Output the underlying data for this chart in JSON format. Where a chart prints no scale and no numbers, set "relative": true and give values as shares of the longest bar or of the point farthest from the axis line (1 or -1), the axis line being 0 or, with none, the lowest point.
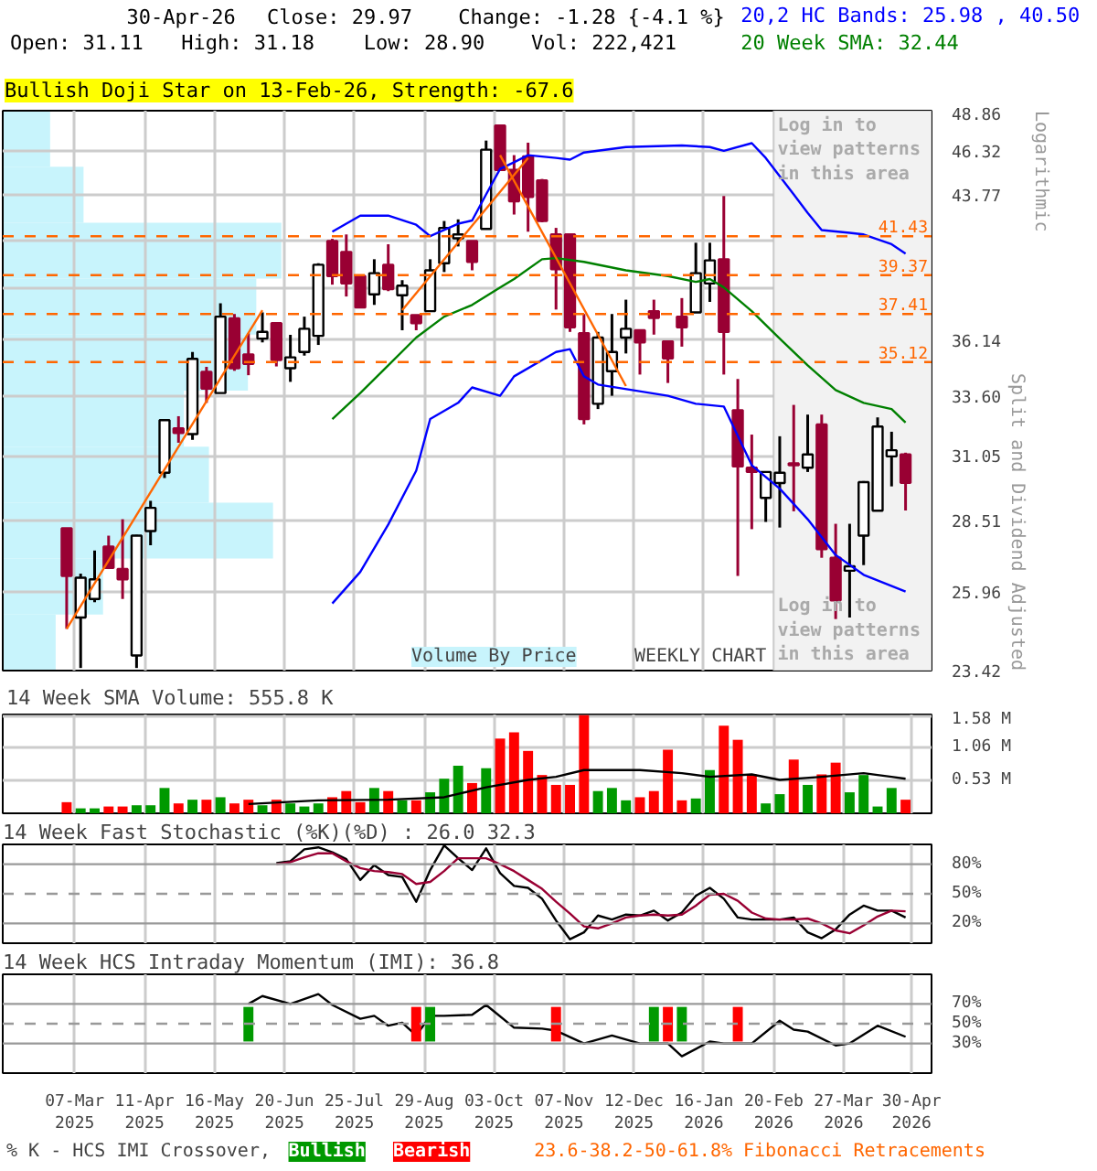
{
  "chart_data": [
    {
      "type": "candlestick",
      "title": "30-Apr-26",
      "ylabel": "Split and Dividend Adjusted",
      "annotations": [
        "Close: 29.97",
        "Change: -1.28 {-4.1 %}",
        "Open: 31.11",
        "High: 31.18",
        "Low: 28.90",
        "Vol: 222,421",
        "Bullish Doji Star on 13-Feb-26, Strength: -67.6",
        "Log in to view patterns in this area",
        "Log in to view patterns in this area",
        "Logarithmic",
        "WEEKLY CHART",
        "23.6-38.2-50-61.8% Fibonacci Retracements",
        "Volume By Price"
      ],
      "x": [
        "2025-03-03",
        "2025-03-10",
        "2025-03-17",
        "2025-03-24",
        "2025-03-31",
        "2025-04-07",
        "2025-04-14",
        "2025-04-21",
        "2025-04-28",
        "2025-05-05",
        "2025-05-12",
        "2025-05-19",
        "2025-05-26",
        "2025-06-02",
        "2025-06-09",
        "2025-06-16",
        "2025-06-23",
        "2025-06-30",
        "2025-07-07",
        "2025-07-14",
        "2025-07-21",
        "2025-07-28",
        "2025-08-04",
        "2025-08-11",
        "2025-08-18",
        "2025-08-25",
        "2025-09-01",
        "2025-09-08",
        "2025-09-15",
        "2025-09-22",
        "2025-09-29",
        "2025-10-06",
        "2025-10-13",
        "2025-10-20",
        "2025-10-27",
        "2025-11-03",
        "2025-11-10",
        "2025-11-17",
        "2025-11-24",
        "2025-12-01",
        "2025-12-08",
        "2025-12-15",
        "2025-12-22",
        "2025-12-29",
        "2026-01-05",
        "2026-01-12",
        "2026-01-19",
        "2026-01-26",
        "2026-02-02",
        "2026-02-09",
        "2026-02-16",
        "2026-02-23",
        "2026-03-02",
        "2026-03-09",
        "2026-03-16",
        "2026-03-23",
        "2026-03-30",
        "2026-04-06",
        "2026-04-13",
        "2026-04-20",
        "2026-04-27"
      ],
      "ohlc": [
        [
          28.23,
          28.23,
          24.74,
          26.52
        ],
        [
          25.11,
          26.6,
          23.5,
          26.46
        ],
        [
          25.73,
          27.42,
          25.62,
          26.4
        ],
        [
          27.56,
          27.96,
          26.76,
          26.8
        ],
        [
          26.76,
          28.57,
          25.73,
          26.4
        ],
        [
          23.89,
          27.99,
          23.5,
          27.96
        ],
        [
          28.13,
          29.27,
          27.61,
          29.0
        ],
        [
          30.37,
          32.59,
          30.16,
          32.54
        ],
        [
          32.19,
          32.71,
          31.59,
          32.0
        ],
        [
          31.95,
          35.59,
          31.71,
          35.27
        ],
        [
          34.67,
          34.9,
          33.29,
          33.92
        ],
        [
          33.72,
          37.94,
          33.72,
          37.28
        ],
        [
          37.2,
          37.41,
          34.72,
          34.84
        ],
        [
          35.47,
          36.48,
          34.52,
          35.04
        ],
        [
          36.22,
          37.49,
          36.04,
          36.54
        ],
        [
          36.96,
          36.96,
          34.92,
          35.22
        ],
        [
          34.84,
          36.4,
          34.22,
          35.34
        ],
        [
          35.59,
          37.28,
          35.42,
          36.69
        ],
        [
          36.35,
          39.99,
          35.92,
          39.91
        ],
        [
          41.17,
          41.29,
          38.88,
          39.32
        ],
        [
          40.59,
          41.53,
          38.28,
          38.94
        ],
        [
          39.32,
          39.32,
          37.73,
          37.73
        ],
        [
          38.39,
          40.2,
          37.86,
          39.47
        ],
        [
          39.91,
          41.0,
          38.55,
          38.65
        ],
        [
          38.34,
          39.11,
          36.62,
          38.83
        ],
        [
          37.36,
          37.36,
          36.62,
          36.96
        ],
        [
          37.55,
          40.2,
          37.55,
          39.62
        ],
        [
          39.99,
          42.27,
          39.53,
          41.89
        ],
        [
          41.32,
          42.36,
          40.88,
          41.53
        ],
        [
          41.17,
          41.17,
          39.62,
          40.06
        ],
        [
          41.83,
          46.98,
          41.83,
          46.42
        ],
        [
          47.92,
          47.92,
          45.2,
          45.2
        ],
        [
          45.2,
          46.09,
          42.63,
          43.38
        ],
        [
          46.02,
          46.85,
          41.68,
          43.62
        ],
        [
          44.58,
          44.67,
          42.2,
          42.27
        ],
        [
          41.53,
          41.89,
          37.63,
          39.68
        ],
        [
          41.53,
          41.59,
          36.54,
          36.76
        ],
        [
          36.48,
          37.41,
          32.36,
          32.59
        ],
        [
          33.25,
          36.54,
          33.02,
          36.27
        ],
        [
          34.7,
          37.41,
          33.6,
          35.59
        ],
        [
          36.27,
          38.12,
          35.52,
          36.69
        ],
        [
          36.62,
          36.62,
          34.55,
          36.04
        ],
        [
          37.55,
          38.12,
          36.41,
          37.22
        ],
        [
          36.09,
          36.09,
          34.17,
          35.29
        ],
        [
          37.28,
          38.2,
          35.84,
          36.76
        ],
        [
          37.49,
          41.08,
          37.49,
          39.47
        ],
        [
          38.94,
          41.08,
          38.01,
          40.14
        ],
        [
          40.2,
          43.68,
          34.55,
          36.54
        ],
        [
          32.97,
          34.35,
          26.52,
          30.62
        ],
        [
          30.57,
          31.93,
          28.2,
          30.4
        ],
        [
          29.38,
          30.4,
          28.47,
          30.4
        ],
        [
          29.96,
          31.86,
          28.26,
          30.37
        ],
        [
          30.75,
          33.2,
          28.87,
          30.67
        ],
        [
          30.57,
          32.78,
          30.4,
          31.11
        ],
        [
          32.36,
          32.78,
          27.16,
          27.47
        ],
        [
          27.16,
          28.4,
          25.06,
          25.68
        ],
        [
          26.7,
          28.4,
          25.11,
          26.86
        ],
        [
          27.96,
          30.04,
          26.9,
          30.0
        ],
        [
          28.89,
          32.66,
          28.89,
          32.27
        ],
        [
          31.03,
          32.05,
          29.83,
          31.28
        ],
        [
          31.11,
          31.18,
          28.9,
          29.97
        ]
      ],
      "series": [
        {
          "type": "line",
          "name": "20,2 HC Bands: 25.98 , 40.50",
          "color": "#0000ff",
          "x": [
            "2025-07-14",
            "2025-07-28",
            "2025-08-11",
            "2025-08-25",
            "2025-09-01",
            "2025-09-15",
            "2025-09-22",
            "2025-09-29",
            "2025-10-06",
            "2025-10-13",
            "2025-10-20",
            "2025-11-03",
            "2025-11-10",
            "2025-11-17",
            "2025-12-08",
            "2026-01-05",
            "2026-01-19",
            "2026-01-26",
            "2026-02-09",
            "2026-02-16",
            "2026-03-02",
            "2026-03-09",
            "2026-03-16",
            "2026-03-30",
            "2026-04-06",
            "2026-04-20",
            "2026-04-27"
          ],
          "values": [
            41.68,
            42.57,
            42.57,
            42.06,
            41.44,
            42.12,
            42.3,
            43.77,
            45.26,
            45.66,
            46.09,
            45.92,
            45.82,
            46.25,
            46.58,
            46.68,
            46.58,
            46.35,
            46.82,
            45.92,
            43.77,
            42.72,
            41.77,
            41.62,
            41.53,
            41.0,
            40.5
          ]
        },
        {
          "type": "line",
          "color": "#0000ff",
          "x": [
            "2025-07-14",
            "2025-07-28",
            "2025-08-11",
            "2025-08-25",
            "2025-09-01",
            "2025-09-15",
            "2025-09-22",
            "2025-10-06",
            "2025-10-13",
            "2025-11-03",
            "2025-11-10",
            "2025-11-17",
            "2025-11-24",
            "2025-12-29",
            "2026-01-12",
            "2026-01-26",
            "2026-02-09",
            "2026-02-23",
            "2026-03-09",
            "2026-03-23",
            "2026-04-06",
            "2026-04-27"
          ],
          "values": [
            25.58,
            26.66,
            28.37,
            30.45,
            32.59,
            33.29,
            33.97,
            33.6,
            34.47,
            35.59,
            35.72,
            34.47,
            34.1,
            33.6,
            33.25,
            33.13,
            30.67,
            29.74,
            28.57,
            27.26,
            26.56,
            25.98
          ]
        },
        {
          "type": "line",
          "name": "20 Week SMA: 32.44",
          "color": "#008000",
          "x": [
            "2025-07-14",
            "2025-07-28",
            "2025-08-11",
            "2025-08-25",
            "2025-09-08",
            "2025-09-22",
            "2025-10-06",
            "2025-10-13",
            "2025-10-27",
            "2025-11-03",
            "2025-11-17",
            "2025-12-08",
            "2025-12-29",
            "2026-01-12",
            "2026-01-19",
            "2026-01-26",
            "2026-02-09",
            "2026-02-23",
            "2026-03-09",
            "2026-03-23",
            "2026-04-06",
            "2026-04-20",
            "2026-04-27"
          ],
          "values": [
            32.59,
            33.72,
            34.97,
            36.27,
            37.28,
            37.86,
            38.74,
            39.17,
            40.2,
            40.26,
            40.06,
            39.62,
            39.32,
            39.02,
            39.17,
            38.74,
            37.55,
            36.22,
            34.97,
            33.85,
            33.29,
            33.02,
            32.44
          ]
        },
        {
          "type": "line",
          "color": "#ff6600",
          "x": [
            "2025-03-03",
            "2025-06-09"
          ],
          "values": [
            24.74,
            37.6
          ]
        },
        {
          "type": "line",
          "color": "#ff6600",
          "x": [
            "2025-08-18",
            "2025-10-20"
          ],
          "values": [
            37.6,
            45.92
          ]
        },
        {
          "type": "line",
          "color": "#ff6600",
          "x": [
            "2025-10-06",
            "2025-12-08"
          ],
          "values": [
            46.09,
            34.03
          ]
        }
      ],
      "ref_lines": [
        {
          "axis": "y",
          "value": 41.43,
          "label": "41.43",
          "color": "#ff6600",
          "line_style": "dashed"
        },
        {
          "axis": "y",
          "value": 39.37,
          "label": "39.37",
          "color": "#ff6600",
          "line_style": "dashed"
        },
        {
          "axis": "y",
          "value": 37.41,
          "label": "37.41",
          "color": "#ff6600",
          "line_style": "dashed"
        },
        {
          "axis": "y",
          "value": 35.12,
          "label": "35.12",
          "color": "#ff6600",
          "line_style": "dashed"
        }
      ],
      "bands": [
        {
          "axis": "x",
          "from": "2026-02-20",
          "to": "2026-05-10",
          "color": "#f2f2f2"
        }
      ],
      "log": true,
      "ylim": [
        23.42,
        48.86
      ],
      "yticks": [
        23.42,
        25.96,
        28.51,
        31.05,
        {
          "value": 33.6,
          "label": "33.60"
        },
        36.14,
        {
          "value": 38.68,
          "label": null
        },
        {
          "value": 41.23,
          "label": null
        },
        43.77,
        46.32,
        48.86
      ],
      "xlim": [
        "2025-01-30",
        "2026-05-10"
      ],
      "xticks": [
        "2025-03-07",
        "2025-04-11",
        "2025-05-16",
        "2025-06-20",
        "2025-07-25",
        "2025-08-29",
        "2025-10-03",
        "2025-11-07",
        "2025-12-12",
        "2026-01-16",
        "2026-02-20",
        "2026-03-27",
        "2026-04-30"
      ],
      "tick_labels": "y",
      "grid": true,
      "legend": "top right"
    },
    {
      "type": "bar",
      "orientation": "horizontal",
      "relative": true,
      "color": "#c8f4fc",
      "categories": [
        null,
        null,
        null,
        null,
        null,
        null,
        null,
        null,
        null,
        null
      ],
      "values": [
        0.17,
        0.29,
        1,
        0.91,
        0.88,
        0.65,
        0.74,
        0.97,
        0.36,
        0.19
      ]
    },
    {
      "type": "bar",
      "title": "14 Week SMA Volume: 555.8 K",
      "x": [
        "2025-03-03",
        "2025-03-10",
        "2025-03-17",
        "2025-03-24",
        "2025-03-31",
        "2025-04-07",
        "2025-04-14",
        "2025-04-21",
        "2025-04-28",
        "2025-05-05",
        "2025-05-12",
        "2025-05-19",
        "2025-05-26",
        "2025-06-02",
        "2025-06-09",
        "2025-06-16",
        "2025-06-23",
        "2025-06-30",
        "2025-07-07",
        "2025-07-14",
        "2025-07-21",
        "2025-07-28",
        "2025-08-04",
        "2025-08-11",
        "2025-08-18",
        "2025-08-25",
        "2025-09-01",
        "2025-09-08",
        "2025-09-15",
        "2025-09-22",
        "2025-09-29",
        "2025-10-06",
        "2025-10-13",
        "2025-10-20",
        "2025-10-27",
        "2025-11-03",
        "2025-11-10",
        "2025-11-17",
        "2025-11-24",
        "2025-12-01",
        "2025-12-08",
        "2025-12-15",
        "2025-12-22",
        "2025-12-29",
        "2026-01-05",
        "2026-01-12",
        "2026-01-19",
        "2026-01-26",
        "2026-02-02",
        "2026-02-09",
        "2026-02-16",
        "2026-02-23",
        "2026-03-02",
        "2026-03-09",
        "2026-03-16",
        "2026-03-23",
        "2026-03-30",
        "2026-04-06",
        "2026-04-13",
        "2026-04-20",
        "2026-04-27"
      ],
      "series": [
        {
          "type": "bar",
          "values": [
            0.18,
            0.08,
            0.08,
            0.11,
            0.11,
            0.13,
            0.13,
            0.41,
            0.16,
            0.22,
            0.22,
            0.26,
            0.16,
            0.22,
            0.13,
            0.22,
            0.16,
            0.11,
            0.16,
            0.26,
            0.36,
            0.18,
            0.41,
            0.36,
            0.21,
            0.21,
            0.34,
            0.56,
            0.77,
            0.49,
            0.73,
            1.21,
            1.31,
            1.01,
            0.62,
            0.46,
            0.46,
            1.59,
            0.36,
            0.41,
            0.21,
            0.26,
            0.36,
            1.03,
            0.21,
            0.24,
            0.7,
            1.42,
            1.19,
            0.63,
            0.16,
            0.31,
            0.87,
            0.46,
            0.63,
            0.82,
            0.34,
            0.62,
            0.11,
            0.41,
            0.22
          ],
          "colors": [
            "#ff0000",
            "#009900",
            "#009900",
            "#ff0000",
            "#ff0000",
            "#009900",
            "#009900",
            "#009900",
            "#ff0000",
            "#009900",
            "#ff0000",
            "#009900",
            "#ff0000",
            "#ff0000",
            "#009900",
            "#ff0000",
            "#009900",
            "#009900",
            "#009900",
            "#ff0000",
            "#ff0000",
            "#ff0000",
            "#009900",
            "#ff0000",
            "#009900",
            "#ff0000",
            "#009900",
            "#009900",
            "#009900",
            "#ff0000",
            "#009900",
            "#ff0000",
            "#ff0000",
            "#ff0000",
            "#ff0000",
            "#ff0000",
            "#ff0000",
            "#ff0000",
            "#009900",
            "#009900",
            "#009900",
            "#ff0000",
            "#ff0000",
            "#ff0000",
            "#ff0000",
            "#009900",
            "#009900",
            "#ff0000",
            "#ff0000",
            "#ff0000",
            "#009900",
            "#009900",
            "#ff0000",
            "#009900",
            "#ff0000",
            "#ff0000",
            "#009900",
            "#009900",
            "#009900",
            "#009900",
            "#ff0000"
          ]
        },
        {
          "type": "line",
          "color": "#000000",
          "x": [
            "2025-06-02",
            "2025-07-07",
            "2025-08-11",
            "2025-09-08",
            "2025-09-29",
            "2025-10-20",
            "2025-11-03",
            "2025-11-17",
            "2025-12-15",
            "2026-01-05",
            "2026-01-19",
            "2026-02-09",
            "2026-02-23",
            "2026-03-16",
            "2026-04-06",
            "2026-04-20",
            "2026-04-27"
          ],
          "values": [
            0.15,
            0.21,
            0.22,
            0.26,
            0.42,
            0.54,
            0.59,
            0.7,
            0.7,
            0.65,
            0.59,
            0.63,
            0.54,
            0.59,
            0.65,
            0.59,
            0.56
          ]
        }
      ],
      "ylim": [
        0,
        1.6
      ],
      "yticks": [
        {
          "value": 0.53,
          "label": "0.53 M"
        },
        {
          "value": 1.06,
          "label": "1.06 M"
        },
        {
          "value": 1.58,
          "label": "1.58 M"
        }
      ],
      "xlim": [
        "2025-01-30",
        "2026-05-10"
      ],
      "xticks": [
        "2025-03-07",
        "2025-04-11",
        "2025-05-16",
        "2025-06-20",
        "2025-07-25",
        "2025-08-29",
        "2025-10-03",
        "2025-11-07",
        "2025-12-12",
        "2026-01-16",
        "2026-02-20",
        "2026-03-27",
        "2026-04-30"
      ],
      "tick_labels": "y",
      "grid": true
    },
    {
      "type": "line",
      "title": "14 Week Fast Stochastic (%K)(%D) : 26.0 32.3",
      "x": [
        "2025-06-16",
        "2025-06-23",
        "2025-06-30",
        "2025-07-07",
        "2025-07-14",
        "2025-07-21",
        "2025-07-28",
        "2025-08-04",
        "2025-08-11",
        "2025-08-18",
        "2025-08-25",
        "2025-09-01",
        "2025-09-08",
        "2025-09-15",
        "2025-09-22",
        "2025-09-29",
        "2025-10-06",
        "2025-10-13",
        "2025-10-20",
        "2025-10-27",
        "2025-11-03",
        "2025-11-10",
        "2025-11-17",
        "2025-11-24",
        "2025-12-01",
        "2025-12-08",
        "2025-12-15",
        "2025-12-22",
        "2025-12-29",
        "2026-01-05",
        "2026-01-12",
        "2026-01-19",
        "2026-01-26",
        "2026-02-02",
        "2026-02-09",
        "2026-02-16",
        "2026-02-23",
        "2026-03-02",
        "2026-03-09",
        "2026-03-16",
        "2026-03-23",
        "2026-03-30",
        "2026-04-06",
        "2026-04-13",
        "2026-04-20",
        "2026-04-27"
      ],
      "series": [
        {
          "color": "#000000",
          "values": [
            81,
            83,
            95,
            97,
            92,
            85,
            64,
            79,
            69,
            67,
            42,
            74,
            99,
            86,
            74,
            96,
            71,
            58,
            56,
            45,
            23,
            4,
            11,
            28,
            24,
            29,
            28,
            33,
            23,
            31,
            48,
            56,
            45,
            26,
            24,
            24,
            24,
            26,
            11,
            5,
            14,
            29,
            38,
            33,
            33,
            26
          ]
        },
        {
          "color": "#990033",
          "values": [
            80,
            82,
            87,
            91,
            91,
            83,
            76,
            73,
            72,
            70,
            60,
            62,
            73,
            86,
            86,
            86,
            80,
            73,
            64,
            55,
            42,
            30,
            17,
            15,
            20,
            26,
            28,
            29,
            28,
            29,
            38,
            49,
            50,
            43,
            31,
            25,
            24,
            24,
            25,
            20,
            13,
            10,
            18,
            27,
            33,
            32.3
          ]
        }
      ],
      "ref_lines": [
        {
          "axis": "y",
          "value": 80,
          "color": "#999999",
          "line_style": "solid"
        },
        {
          "axis": "y",
          "value": 50,
          "color": "#999999",
          "line_style": "dashed"
        },
        {
          "axis": "y",
          "value": 20,
          "color": "#999999",
          "line_style": "solid"
        }
      ],
      "ylim": [
        0,
        100
      ],
      "yticks": [
        {
          "value": 20,
          "label": "20%"
        },
        {
          "value": 50,
          "label": "50%"
        },
        {
          "value": 80,
          "label": "80%"
        }
      ],
      "xlim": [
        "2025-01-30",
        "2026-05-10"
      ],
      "xticks": [
        "2025-03-07",
        "2025-04-11",
        "2025-05-16",
        "2025-06-20",
        "2025-07-25",
        "2025-08-29",
        "2025-10-03",
        "2025-11-07",
        "2025-12-12",
        "2026-01-16",
        "2026-02-20",
        "2026-03-27",
        "2026-04-30"
      ],
      "tick_labels": "y",
      "grid": "x"
    },
    {
      "type": "line",
      "title": "14 Week HCS Intraday Momentum (IMI): 36.8",
      "annotations": [
        "% K - HCS IMI Crossover,"
      ],
      "series": [
        {
          "type": "line",
          "color": "#000000",
          "x": [
            "2025-06-02",
            "2025-06-09",
            "2025-06-23",
            "2025-07-07",
            "2025-07-14",
            "2025-07-28",
            "2025-08-04",
            "2025-08-11",
            "2025-08-18",
            "2025-08-25",
            "2025-09-01",
            "2025-09-08",
            "2025-09-22",
            "2025-09-29",
            "2025-10-13",
            "2025-10-27",
            "2025-11-03",
            "2025-11-17",
            "2025-12-01",
            "2025-12-15",
            "2025-12-29",
            "2026-01-05",
            "2026-01-19",
            "2026-01-26",
            "2026-02-09",
            "2026-02-23",
            "2026-03-02",
            "2026-03-09",
            "2026-03-23",
            "2026-03-30",
            "2026-04-13",
            "2026-04-27"
          ],
          "values": [
            70,
            78,
            70,
            80,
            69,
            55,
            58,
            48,
            51,
            38,
            58,
            58,
            59,
            69,
            46,
            45,
            43,
            30,
            38,
            30,
            30,
            17,
            32,
            30,
            30,
            53,
            44,
            42,
            28,
            30,
            48,
            36.8
          ]
        },
        {
          "type": "bar",
          "name": "Bullish",
          "color": "#009900",
          "x": [
            "2025-06-02",
            "2025-09-01",
            "2025-12-22",
            "2026-01-05"
          ],
          "base": [
            32,
            32,
            32,
            32
          ],
          "values": [
            35,
            35,
            35,
            35
          ]
        },
        {
          "type": "bar",
          "name": "Bearish",
          "color": "#ff0000",
          "x": [
            "2025-08-25",
            "2025-11-03",
            "2025-12-29",
            "2026-02-02"
          ],
          "base": [
            32,
            32,
            32,
            32
          ],
          "values": [
            35,
            35,
            35,
            35
          ]
        }
      ],
      "ref_lines": [
        {
          "axis": "y",
          "value": 70,
          "color": "#999999",
          "line_style": "solid"
        },
        {
          "axis": "y",
          "value": 50,
          "color": "#999999",
          "line_style": "dashed"
        },
        {
          "axis": "y",
          "value": 30,
          "color": "#999999",
          "line_style": "solid"
        }
      ],
      "ylim": [
        0,
        100
      ],
      "yticks": [
        {
          "value": 30,
          "label": "30%"
        },
        {
          "value": 50,
          "label": "50%"
        },
        {
          "value": 70,
          "label": "70%"
        }
      ],
      "xlim": [
        "2025-01-30",
        "2026-05-10"
      ],
      "xticks": [
        {
          "value": "2025-03-07",
          "label": "07-Mar\n2025"
        },
        {
          "value": "2025-04-11",
          "label": "11-Apr\n2025"
        },
        {
          "value": "2025-05-16",
          "label": "16-May\n2025"
        },
        {
          "value": "2025-06-20",
          "label": "20-Jun\n2025"
        },
        {
          "value": "2025-07-25",
          "label": "25-Jul\n2025"
        },
        {
          "value": "2025-08-29",
          "label": "29-Aug\n2025"
        },
        {
          "value": "2025-10-03",
          "label": "03-Oct\n2025"
        },
        {
          "value": "2025-11-07",
          "label": "07-Nov\n2025"
        },
        {
          "value": "2025-12-12",
          "label": "12-Dec\n2025"
        },
        {
          "value": "2026-01-16",
          "label": "16-Jan\n2026"
        },
        {
          "value": "2026-02-20",
          "label": "20-Feb\n2026"
        },
        {
          "value": "2026-03-27",
          "label": "27-Mar\n2026"
        },
        {
          "value": "2026-04-30",
          "label": "30-Apr\n2026"
        }
      ],
      "grid": "x",
      "legend": "bottom"
    }
  ]
}
